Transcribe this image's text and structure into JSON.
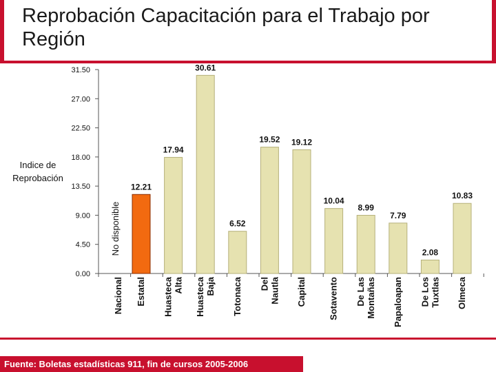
{
  "title": "Reprobación Capacitación para el Trabajo por Región",
  "source": "Fuente: Boletas estadísticas 911, fin de cursos 2005-2006",
  "chart_data": {
    "type": "bar",
    "title": "Reprobación Capacitación para el Trabajo por Región",
    "ylabel": "Indice de Reprobación",
    "xlabel": "",
    "ylim": [
      0,
      31.5
    ],
    "yticks": [
      "0.00",
      "4.50",
      "9.00",
      "13.50",
      "18.00",
      "22.50",
      "27.00",
      "31.50"
    ],
    "grid": false,
    "legend": "none",
    "categories": [
      "Nacional",
      "Estatal",
      "Huasteca Alta",
      "Huasteca Baja",
      "Totonaca",
      "Del Nautla",
      "Capital",
      "Sotavento",
      "De Las Montañas",
      "Papaloapan",
      "De Los Tuxtlas",
      "Olmeca"
    ],
    "values": [
      null,
      12.21,
      17.94,
      30.61,
      6.52,
      19.52,
      19.12,
      10.04,
      8.99,
      7.79,
      2.08,
      10.83
    ],
    "value_labels": [
      "",
      "12.21",
      "17.94",
      "30.61",
      "6.52",
      "19.52",
      "19.12",
      "10.04",
      "8.99",
      "7.79",
      "2.08",
      "10.83"
    ],
    "annotations": [
      "No disponible"
    ],
    "colors": {
      "bar": "#e6e2b0",
      "bar_edge": "#b5b07a",
      "highlight": "#f26a10",
      "highlight_edge": "#8a2c00",
      "axis": "#555555",
      "text": "#111111"
    }
  }
}
